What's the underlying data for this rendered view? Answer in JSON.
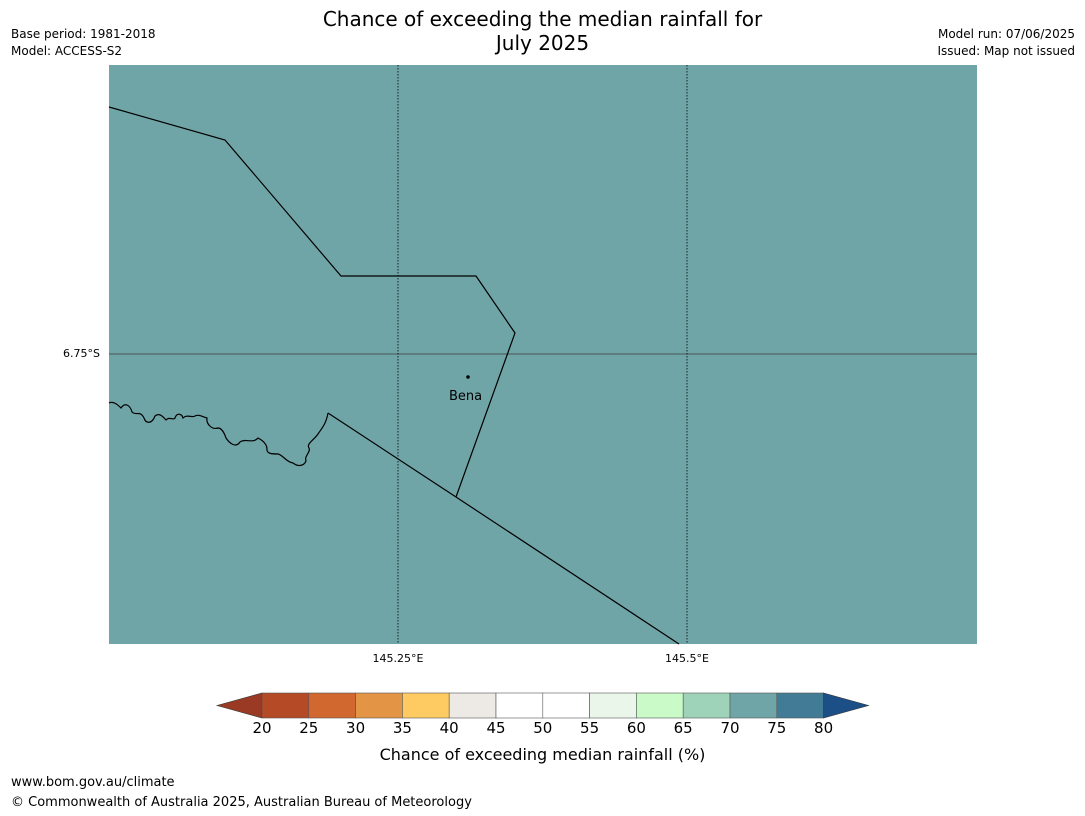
{
  "title_line1": "Chance of exceeding the median rainfall for",
  "title_line2": "July 2025",
  "meta_left": [
    "Base period: 1981-2018",
    "Model: ACCESS-S2"
  ],
  "meta_right": [
    "Model run: 07/06/2025",
    "Issued: Map not issued"
  ],
  "map": {
    "fill_color": "#70a5a8",
    "fill_value_range": "70-75",
    "lat_label": "6.75°S",
    "lon_labels": [
      "145.25°E",
      "145.5°E"
    ],
    "place": {
      "name": "Bena",
      "lon": 145.31,
      "lat": -6.77
    }
  },
  "colorbar": {
    "ticks": [
      "20",
      "25",
      "30",
      "35",
      "40",
      "45",
      "50",
      "55",
      "60",
      "65",
      "70",
      "75",
      "80"
    ],
    "colors": [
      "#9a3a24",
      "#b44a26",
      "#d0682f",
      "#e39545",
      "#fdcb62",
      "#ede9e4",
      "#ffffff",
      "#ffffff",
      "#eaf6ea",
      "#c9fac8",
      "#9fd3b9",
      "#70a5a8",
      "#417b96",
      "#1d4f87"
    ],
    "label": "Chance of exceeding median rainfall (%)"
  },
  "footer": [
    "www.bom.gov.au/climate",
    "© Commonwealth of Australia 2025, Australian Bureau of Meteorology"
  ]
}
